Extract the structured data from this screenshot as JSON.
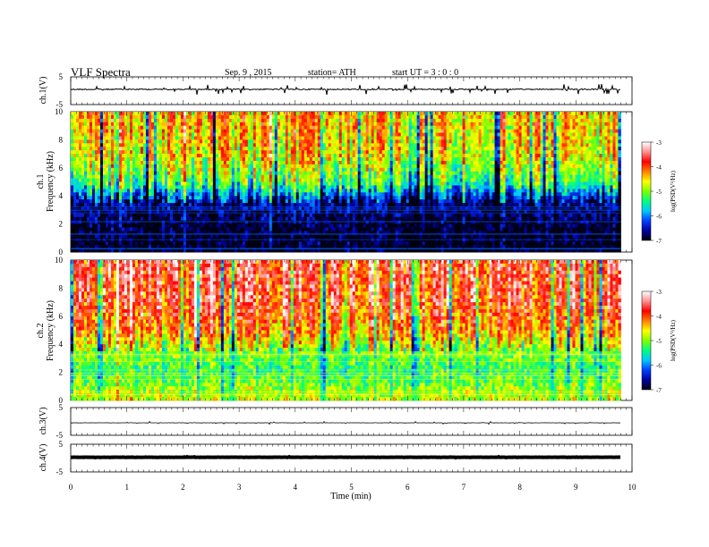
{
  "header": {
    "title": "VLF  Spectra",
    "date": "Sep. 9  , 2015",
    "station": "station= ATH",
    "start": "start  UT =  3 : 0  : 0"
  },
  "chart_data": [
    {
      "type": "line",
      "panel": "ch1-waveform",
      "ylabel": "ch.1(V)",
      "yticks": [
        "5",
        "-5"
      ],
      "ylim": [
        -5,
        5
      ],
      "xlim": [
        0,
        10
      ],
      "baseline": 0.5,
      "data_end_min": 9.8
    },
    {
      "type": "heatmap",
      "panel": "ch1-spectrogram",
      "ylabel": [
        "ch.1",
        "Frequency  (kHz)"
      ],
      "yticks": [
        "0",
        "2",
        "4",
        "6",
        "8",
        "10"
      ],
      "ylim": [
        0,
        10
      ],
      "xlim": [
        0,
        10
      ],
      "data_end_min": 9.8,
      "colorbar": {
        "label": "log(PSD(V²/Hz)",
        "ticks": [
          "-3",
          "-4",
          "-5",
          "-6",
          "-7"
        ],
        "range": [
          -7,
          -3
        ]
      },
      "profile_log_psd": [
        {
          "freq_khz": 0.5,
          "value": -7.0
        },
        {
          "freq_khz": 2.0,
          "value": -6.9
        },
        {
          "freq_khz": 3.5,
          "value": -6.6
        },
        {
          "freq_khz": 5.0,
          "value": -5.2
        },
        {
          "freq_khz": 7.0,
          "value": -4.6
        },
        {
          "freq_khz": 9.0,
          "value": -4.4
        },
        {
          "freq_khz": 10.0,
          "value": -4.4
        }
      ]
    },
    {
      "type": "heatmap",
      "panel": "ch2-spectrogram",
      "ylabel": [
        "ch.2",
        "Frequency  (kHz)"
      ],
      "yticks": [
        "0",
        "2",
        "4",
        "6",
        "8",
        "10"
      ],
      "ylim": [
        0,
        10
      ],
      "xlim": [
        0,
        10
      ],
      "data_end_min": 9.8,
      "colorbar": {
        "label": "log(PSD(V²/Hz)",
        "ticks": [
          "-3",
          "-4",
          "-5",
          "-6",
          "-7"
        ],
        "range": [
          -7,
          -3
        ]
      },
      "profile_log_psd": [
        {
          "freq_khz": 0.5,
          "value": -4.8
        },
        {
          "freq_khz": 2.0,
          "value": -5.3
        },
        {
          "freq_khz": 3.5,
          "value": -5.0
        },
        {
          "freq_khz": 5.0,
          "value": -4.2
        },
        {
          "freq_khz": 7.0,
          "value": -3.8
        },
        {
          "freq_khz": 9.0,
          "value": -3.7
        },
        {
          "freq_khz": 10.0,
          "value": -3.7
        }
      ]
    },
    {
      "type": "line",
      "panel": "ch3-waveform",
      "ylabel": "ch.3(V)",
      "yticks": [
        "5",
        "-5"
      ],
      "ylim": [
        -5,
        5
      ],
      "xlim": [
        0,
        10
      ],
      "baseline": -0.5,
      "data_end_min": 9.8
    },
    {
      "type": "line",
      "panel": "ch4-waveform",
      "ylabel": "ch.4(V)",
      "yticks": [
        "5",
        "-5"
      ],
      "ylim": [
        -5,
        5
      ],
      "xlim": [
        0,
        10
      ],
      "baseline": 0.3,
      "data_end_min": 9.8,
      "xlabel": "Time  (min)",
      "xticks": [
        "0",
        "1",
        "2",
        "3",
        "4",
        "5",
        "6",
        "7",
        "8",
        "9",
        "10"
      ]
    }
  ],
  "colormap": [
    "#000010",
    "#0000a0",
    "#0040ff",
    "#00c8ff",
    "#00ff80",
    "#80ff00",
    "#ffff00",
    "#ff8000",
    "#ff0000",
    "#ff9090",
    "#ffffff"
  ]
}
